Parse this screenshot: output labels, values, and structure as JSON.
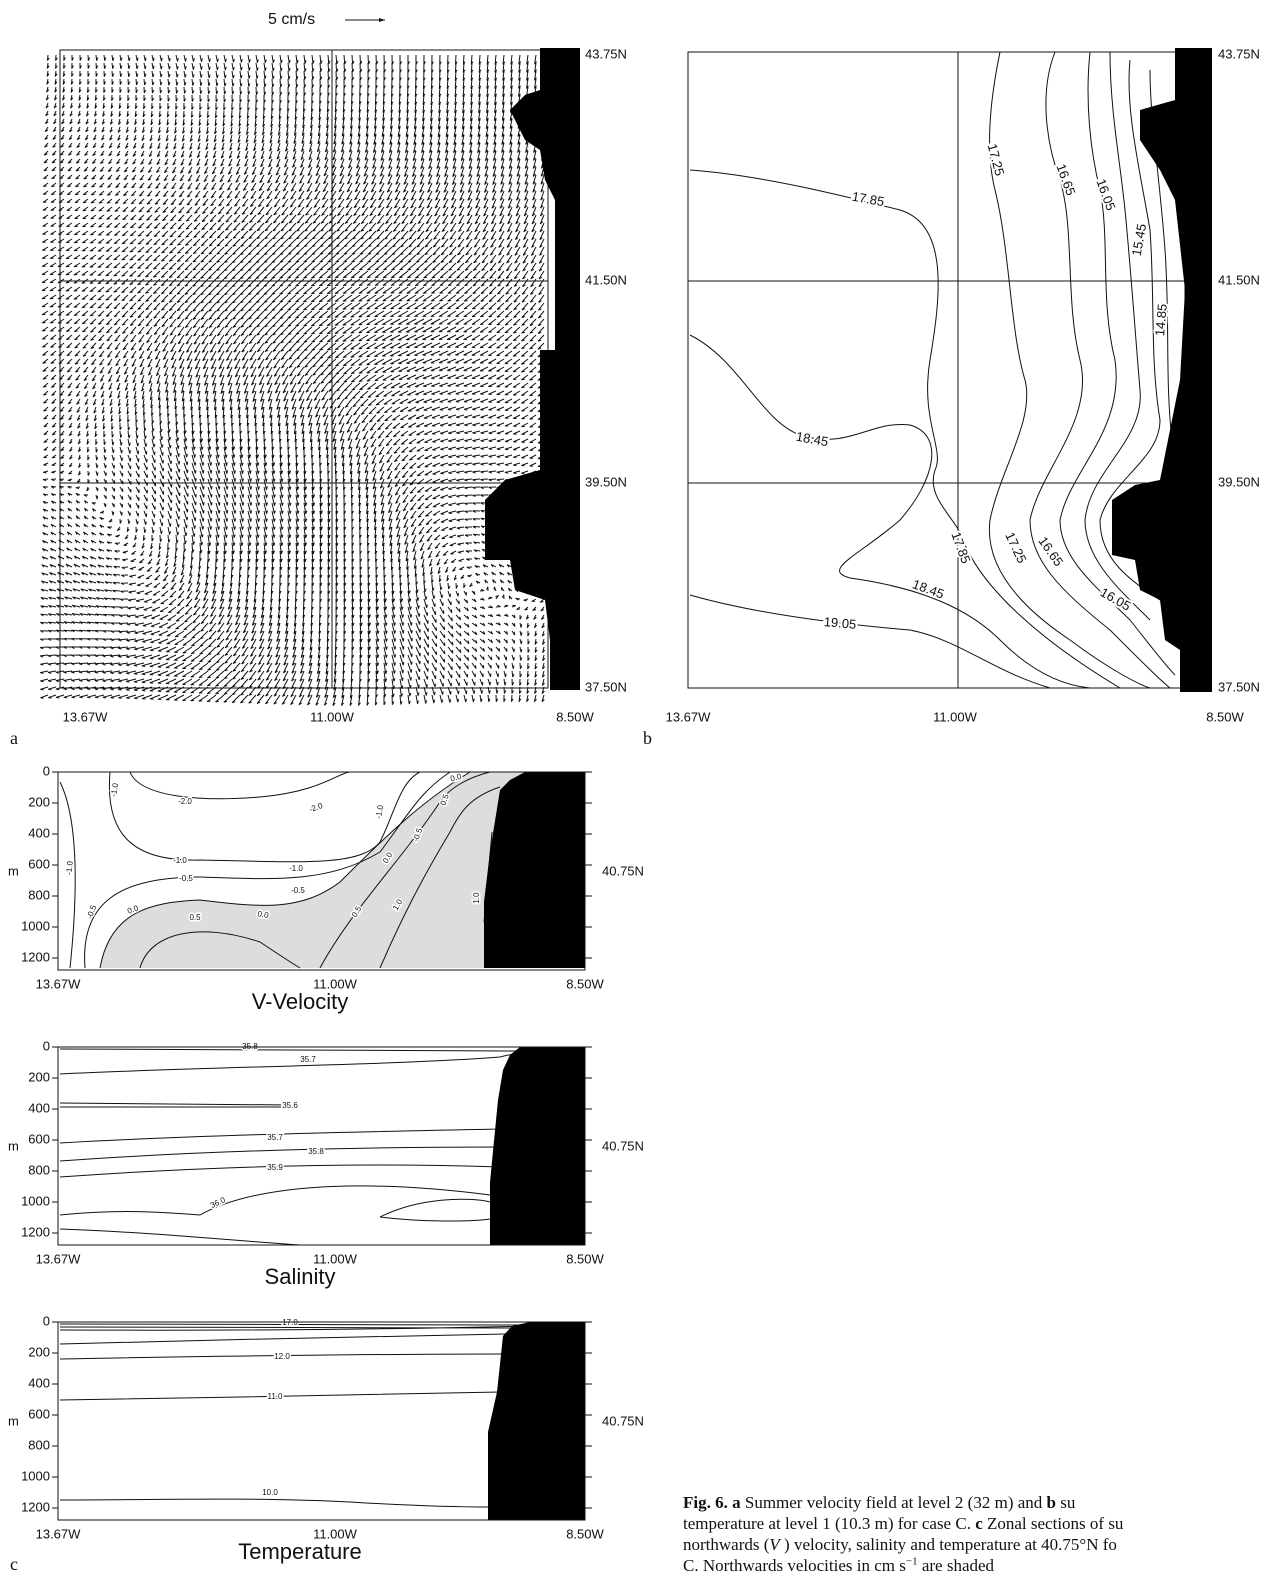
{
  "panel_a": {
    "letter": "a",
    "scale_label": "5 cm/s",
    "lat_labels": [
      "43.75N",
      "41.50N",
      "39.50N",
      "37.50N"
    ],
    "lon_labels": [
      "13.67W",
      "11.00W",
      "8.50W"
    ]
  },
  "panel_b": {
    "letter": "b",
    "lat_labels": [
      "43.75N",
      "41.50N",
      "39.50N",
      "37.50N"
    ],
    "lon_labels": [
      "13.67W",
      "11.00W",
      "8.50W"
    ],
    "contour_labels": [
      "17.85",
      "17.25",
      "16.65",
      "16.05",
      "15.45",
      "14.85",
      "18.45",
      "17.85",
      "17.25",
      "16.65",
      "16.05",
      "18.45",
      "19.05"
    ]
  },
  "panel_c": {
    "letter": "c",
    "sections": [
      {
        "title": "V-Velocity",
        "depth_ticks": [
          0,
          200,
          400,
          600,
          800,
          1000,
          1200
        ],
        "depth_unit": "m",
        "lat_label": "40.75N",
        "lon_labels": [
          "13.67W",
          "11.00W",
          "8.50W"
        ],
        "contour_labels": [
          "-1.0",
          "-2.0",
          "-2.0",
          "-1.0",
          "0.0",
          "0.5",
          "-0.5",
          "-1.0",
          "-1.0",
          "-1.0",
          "-0.5",
          "-0.5",
          "0.0",
          "-0.5",
          "0.0",
          "0.5",
          "0.0",
          "0.5",
          "1.0",
          "1.0"
        ]
      },
      {
        "title": "Salinity",
        "depth_ticks": [
          0,
          200,
          400,
          600,
          800,
          1000,
          1200
        ],
        "depth_unit": "m",
        "lat_label": "40.75N",
        "lon_labels": [
          "13.67W",
          "11.00W",
          "8.50W"
        ],
        "contour_labels": [
          "35.8",
          "35.7",
          "35.6",
          "35.7",
          "35.8",
          "35.9",
          "36.0"
        ]
      },
      {
        "title": "Temperature",
        "depth_ticks": [
          0,
          200,
          400,
          600,
          800,
          1000,
          1200
        ],
        "depth_unit": "m",
        "lat_label": "40.75N",
        "lon_labels": [
          "13.67W",
          "11.00W",
          "8.50W"
        ],
        "contour_labels": [
          "17.0",
          "12.0",
          "11.0",
          "10.0"
        ]
      }
    ]
  },
  "caption": {
    "lines": [
      [
        {
          "text": "Fig. 6. a",
          "bold": true
        },
        {
          "text": " Summer velocity field at level 2 (32 m) and "
        },
        {
          "text": "b",
          "bold": true
        },
        {
          "text": " su"
        }
      ],
      [
        {
          "text": "temperature at level 1 (10.3 m) for case C. "
        },
        {
          "text": "c",
          "bold": true
        },
        {
          "text": "  Zonal sections of su"
        }
      ],
      [
        {
          "text": "northwards ("
        },
        {
          "text": "V",
          "italic": true
        },
        {
          "text": " ) velocity, salinity and temperature at 40.75°N fo"
        }
      ],
      [
        {
          "text": "C. Northwards velocities in cm s"
        },
        {
          "text": "−1",
          "sup": true
        },
        {
          "text": " are shaded"
        }
      ]
    ]
  }
}
